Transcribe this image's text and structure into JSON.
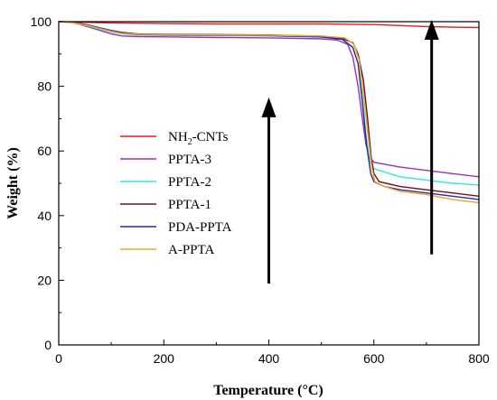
{
  "chart_data": {
    "type": "line",
    "xlabel": "Temperature (°C)",
    "ylabel": "Weight (%)",
    "xlim": [
      0,
      800
    ],
    "ylim": [
      0,
      100
    ],
    "xticks": [
      0,
      200,
      400,
      600,
      800
    ],
    "yticks": [
      0,
      20,
      40,
      60,
      80,
      100
    ],
    "grid": false,
    "legend_position": "center-left",
    "series": [
      {
        "name": "NH2-CNTs",
        "legend_main": "NH",
        "legend_sub": "2",
        "legend_rest": "-CNTs",
        "color": "#e8191b",
        "points": [
          [
            0,
            100
          ],
          [
            100,
            99.6
          ],
          [
            200,
            99.4
          ],
          [
            300,
            99.3
          ],
          [
            400,
            99.3
          ],
          [
            500,
            99.3
          ],
          [
            560,
            99.2
          ],
          [
            600,
            99.1
          ],
          [
            650,
            98.8
          ],
          [
            700,
            98.5
          ],
          [
            750,
            98.3
          ],
          [
            800,
            98.2
          ]
        ]
      },
      {
        "name": "PPTA-3",
        "color": "#9b2fb5",
        "points": [
          [
            0,
            100
          ],
          [
            20,
            99.8
          ],
          [
            40,
            99.2
          ],
          [
            60,
            98.2
          ],
          [
            80,
            97.2
          ],
          [
            100,
            96.2
          ],
          [
            120,
            95.6
          ],
          [
            150,
            95.4
          ],
          [
            200,
            95.3
          ],
          [
            300,
            95.1
          ],
          [
            400,
            95
          ],
          [
            500,
            94.7
          ],
          [
            530,
            94.3
          ],
          [
            550,
            93
          ],
          [
            560,
            89
          ],
          [
            570,
            80
          ],
          [
            578,
            70
          ],
          [
            585,
            62
          ],
          [
            592,
            58
          ],
          [
            600,
            56.5
          ],
          [
            650,
            55
          ],
          [
            700,
            54
          ],
          [
            750,
            53
          ],
          [
            800,
            52
          ]
        ]
      },
      {
        "name": "PPTA-2",
        "color": "#2ee8e1",
        "points": [
          [
            0,
            100
          ],
          [
            20,
            99.8
          ],
          [
            40,
            99.3
          ],
          [
            60,
            98.5
          ],
          [
            80,
            97.6
          ],
          [
            100,
            96.8
          ],
          [
            120,
            96.2
          ],
          [
            150,
            95.9
          ],
          [
            200,
            95.8
          ],
          [
            300,
            95.7
          ],
          [
            400,
            95.6
          ],
          [
            500,
            95.2
          ],
          [
            540,
            94.5
          ],
          [
            560,
            92
          ],
          [
            570,
            87
          ],
          [
            578,
            77
          ],
          [
            585,
            65
          ],
          [
            592,
            57
          ],
          [
            600,
            54.5
          ],
          [
            650,
            52
          ],
          [
            700,
            51
          ],
          [
            750,
            50
          ],
          [
            800,
            49.5
          ]
        ]
      },
      {
        "name": "PPTA-1",
        "color": "#6b1020",
        "points": [
          [
            0,
            100
          ],
          [
            20,
            99.9
          ],
          [
            40,
            99.5
          ],
          [
            60,
            98.8
          ],
          [
            80,
            98
          ],
          [
            100,
            97.3
          ],
          [
            120,
            96.7
          ],
          [
            150,
            96.2
          ],
          [
            200,
            96.1
          ],
          [
            300,
            96
          ],
          [
            400,
            95.9
          ],
          [
            500,
            95.5
          ],
          [
            540,
            94.8
          ],
          [
            560,
            93.5
          ],
          [
            570,
            90
          ],
          [
            580,
            82
          ],
          [
            588,
            70
          ],
          [
            595,
            58
          ],
          [
            600,
            53
          ],
          [
            610,
            50.5
          ],
          [
            650,
            49
          ],
          [
            700,
            48
          ],
          [
            750,
            47
          ],
          [
            800,
            46
          ]
        ]
      },
      {
        "name": "PDA-PPTA",
        "color": "#2a2ba8",
        "points": [
          [
            0,
            100
          ],
          [
            20,
            99.9
          ],
          [
            40,
            99.5
          ],
          [
            60,
            98.8
          ],
          [
            80,
            98
          ],
          [
            100,
            97.2
          ],
          [
            120,
            96.5
          ],
          [
            150,
            96
          ],
          [
            200,
            95.9
          ],
          [
            300,
            95.8
          ],
          [
            400,
            95.7
          ],
          [
            500,
            95.3
          ],
          [
            540,
            94.5
          ],
          [
            560,
            92
          ],
          [
            570,
            87
          ],
          [
            578,
            75
          ],
          [
            586,
            62
          ],
          [
            594,
            53
          ],
          [
            600,
            50.5
          ],
          [
            620,
            49
          ],
          [
            650,
            48
          ],
          [
            700,
            47
          ],
          [
            750,
            46
          ],
          [
            800,
            45
          ]
        ]
      },
      {
        "name": "A-PPTA",
        "color": "#f5a623",
        "points": [
          [
            0,
            100
          ],
          [
            20,
            99.8
          ],
          [
            40,
            99.3
          ],
          [
            60,
            98.6
          ],
          [
            80,
            97.8
          ],
          [
            100,
            97
          ],
          [
            120,
            96.4
          ],
          [
            150,
            96.1
          ],
          [
            200,
            96
          ],
          [
            300,
            95.9
          ],
          [
            400,
            95.8
          ],
          [
            500,
            95.6
          ],
          [
            545,
            95
          ],
          [
            562,
            93
          ],
          [
            572,
            88
          ],
          [
            580,
            78
          ],
          [
            588,
            66
          ],
          [
            596,
            55
          ],
          [
            602,
            50.5
          ],
          [
            620,
            49
          ],
          [
            650,
            47.5
          ],
          [
            700,
            46.5
          ],
          [
            750,
            45
          ],
          [
            800,
            44
          ]
        ]
      }
    ],
    "arrows": [
      {
        "x": 400,
        "y_from": 19,
        "y_to": 76
      },
      {
        "x": 710,
        "y_from": 28,
        "y_to": 100
      }
    ]
  }
}
